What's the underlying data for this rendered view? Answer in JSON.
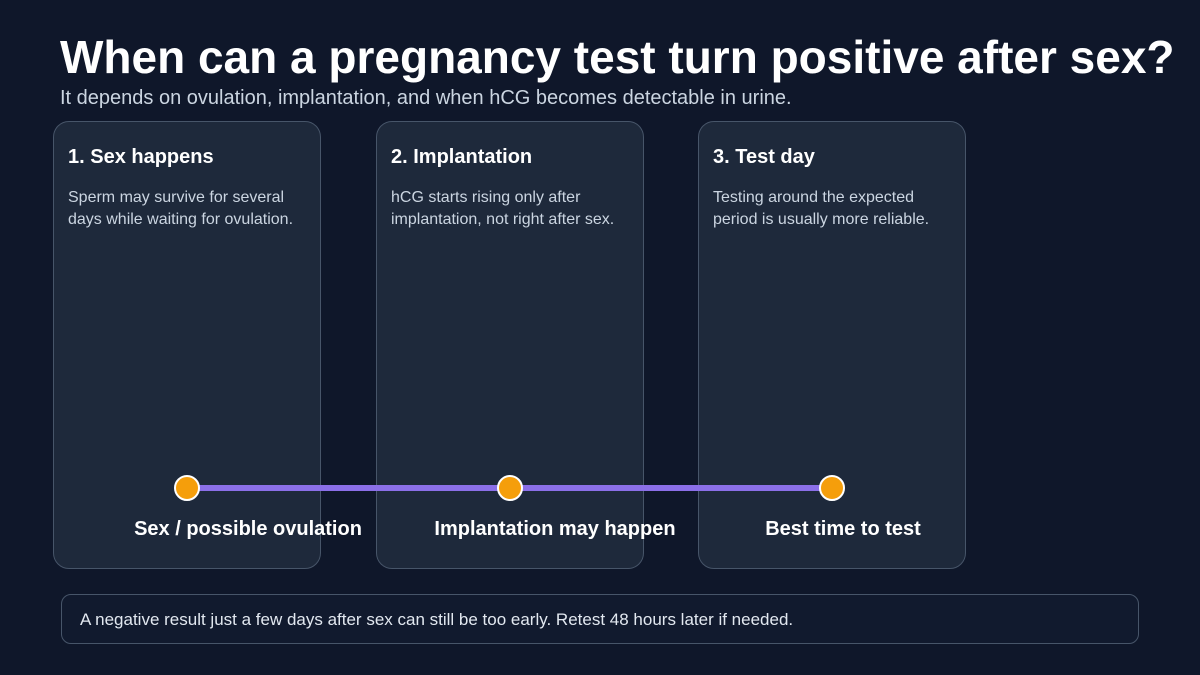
{
  "header": {
    "title": "When can a pregnancy test turn positive after sex?",
    "subtitle": "It depends on ovulation, implantation, and when hCG becomes detectable in urine."
  },
  "cards": [
    {
      "title": "1. Sex happens",
      "text": "Sperm may survive for several days while waiting for ovulation."
    },
    {
      "title": "2. Implantation",
      "text": "hCG starts rising only after implantation, not right after sex."
    },
    {
      "title": "3. Test day",
      "text": "Testing around the expected period is usually more reliable."
    }
  ],
  "timeline": [
    "Sex / possible ovulation",
    "Implantation may happen",
    "Best time to test"
  ],
  "note": "A negative result just a few days after sex can still be too early. Retest 48 hours later if needed."
}
